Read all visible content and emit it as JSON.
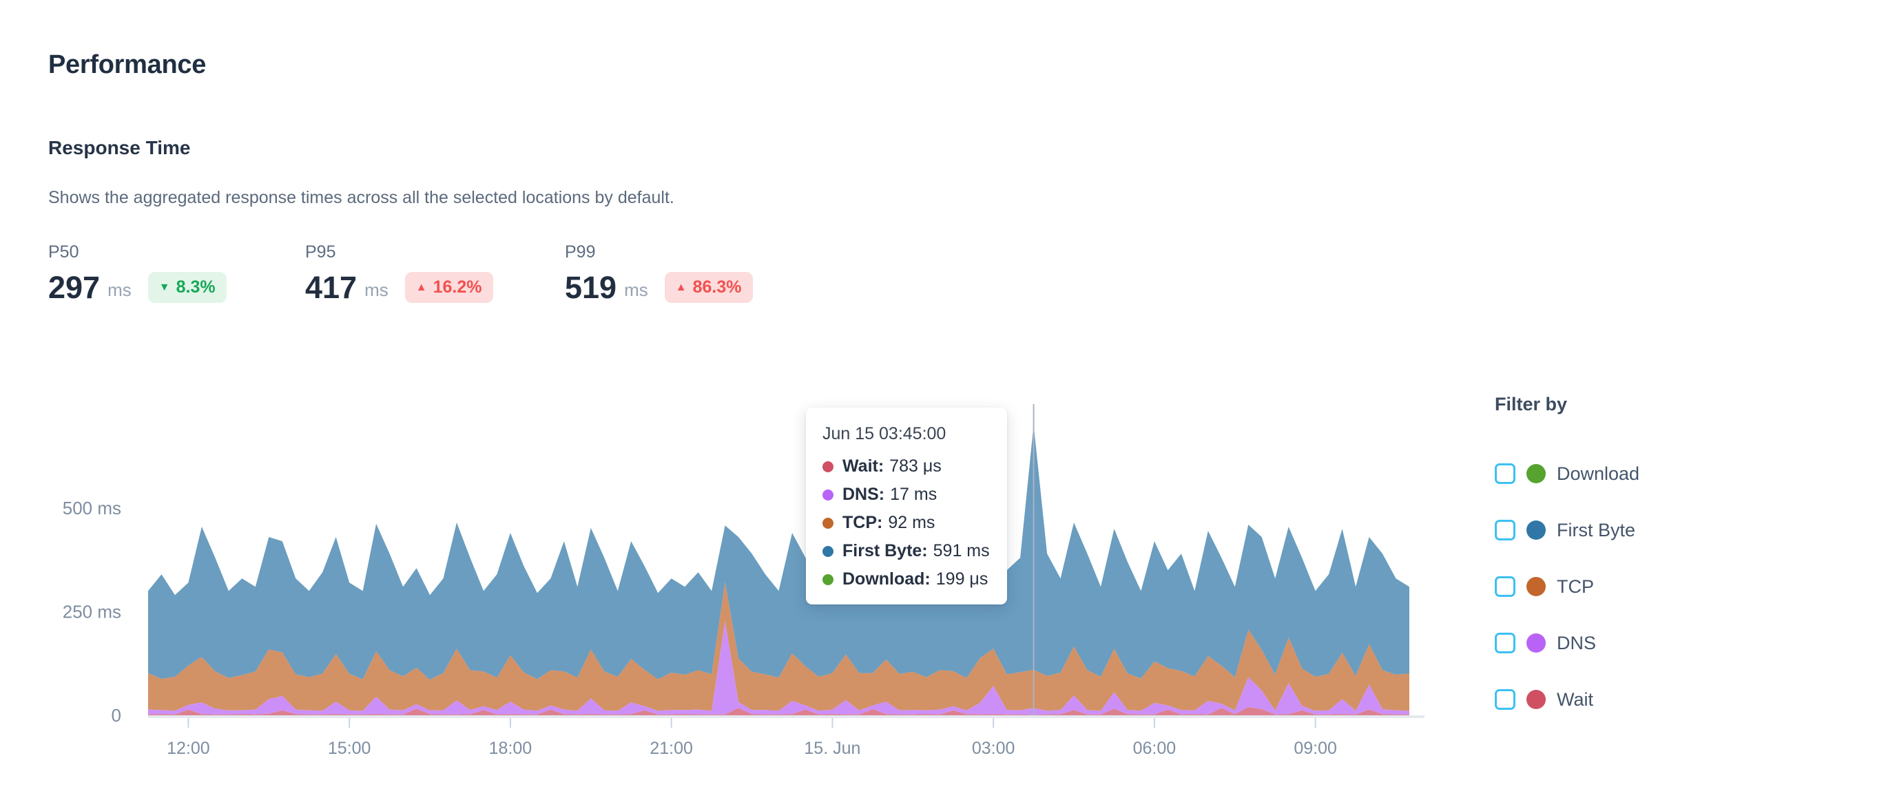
{
  "page": {
    "title": "Performance"
  },
  "section": {
    "title": "Response Time",
    "description": "Shows the aggregated response times across all the selected locations by default."
  },
  "metrics": [
    {
      "label": "P50",
      "value": "297",
      "unit": "ms",
      "delta": "8.3%",
      "direction": "down",
      "arrow": "▼",
      "badge_bg": "#e3f5e9",
      "badge_color": "#17a857"
    },
    {
      "label": "P95",
      "value": "417",
      "unit": "ms",
      "delta": "16.2%",
      "direction": "up",
      "arrow": "▲",
      "badge_bg": "#fcdcdc",
      "badge_color": "#f25050"
    },
    {
      "label": "P99",
      "value": "519",
      "unit": "ms",
      "delta": "86.3%",
      "direction": "up",
      "arrow": "▲",
      "badge_bg": "#fcdcdc",
      "badge_color": "#f25050"
    }
  ],
  "tooltip": {
    "title": "Jun 15 03:45:00",
    "rows": [
      {
        "label": "Wait:",
        "value": "783 μs",
        "color": "#cf4f63"
      },
      {
        "label": "DNS:",
        "value": "17 ms",
        "color": "#b863f5"
      },
      {
        "label": "TCP:",
        "value": "92 ms",
        "color": "#c2662b"
      },
      {
        "label": "First Byte:",
        "value": "591 ms",
        "color": "#3077a8"
      },
      {
        "label": "Download:",
        "value": "199 μs",
        "color": "#56a330"
      }
    ]
  },
  "filter": {
    "title": "Filter by",
    "checkbox_border_color": "#3cc1f2",
    "items": [
      {
        "label": "Download",
        "color": "#56a330",
        "checked": false
      },
      {
        "label": "First Byte",
        "color": "#3077a8",
        "checked": false
      },
      {
        "label": "TCP",
        "color": "#c2662b",
        "checked": false
      },
      {
        "label": "DNS",
        "color": "#b863f5",
        "checked": false
      },
      {
        "label": "Wait",
        "color": "#cf4f63",
        "checked": false
      }
    ]
  },
  "chart_data": {
    "type": "area",
    "stacked": true,
    "title": "Response Time",
    "y_unit": "ms",
    "ylim": [
      0,
      800
    ],
    "grid": false,
    "legend_position": "right",
    "x_start": "Jun 14 11:15",
    "x_interval_minutes": 15,
    "x_ticks": [
      {
        "i": 3,
        "label": "12:00"
      },
      {
        "i": 15,
        "label": "15:00"
      },
      {
        "i": 27,
        "label": "18:00"
      },
      {
        "i": 39,
        "label": "21:00"
      },
      {
        "i": 51,
        "label": "15. Jun"
      },
      {
        "i": 63,
        "label": "03:00"
      },
      {
        "i": 75,
        "label": "06:00"
      },
      {
        "i": 87,
        "label": "09:00"
      }
    ],
    "y_ticks": [
      {
        "v": 0,
        "label": "0"
      },
      {
        "v": 250,
        "label": "250 ms"
      },
      {
        "v": 500,
        "label": "500 ms"
      }
    ],
    "hover_index": 66,
    "hover_time": "Jun 15 03:45:00",
    "series": [
      {
        "name": "Wait",
        "color": "#cf4f63",
        "values": [
          2,
          3,
          2,
          14,
          3,
          2,
          2,
          3,
          2,
          4,
          12,
          3,
          2,
          2,
          3,
          2,
          2,
          3,
          2,
          2,
          16,
          3,
          2,
          2,
          3,
          13,
          2,
          3,
          2,
          2,
          14,
          3,
          2,
          3,
          2,
          2,
          3,
          12,
          2,
          2,
          3,
          2,
          2,
          2,
          18,
          3,
          2,
          2,
          3,
          14,
          2,
          3,
          2,
          2,
          15,
          3,
          2,
          2,
          3,
          2,
          12,
          3,
          2,
          3,
          2,
          2,
          1,
          2,
          3,
          13,
          2,
          2,
          16,
          3,
          2,
          2,
          14,
          2,
          3,
          2,
          18,
          3,
          20,
          15,
          2,
          3,
          12,
          2,
          2,
          3,
          2,
          14,
          3,
          2,
          2
        ]
      },
      {
        "name": "DNS",
        "color": "#b863f5",
        "values": [
          12,
          10,
          9,
          11,
          28,
          14,
          10,
          9,
          12,
          35,
          35,
          11,
          10,
          9,
          30,
          10,
          9,
          42,
          12,
          10,
          11,
          9,
          10,
          34,
          10,
          9,
          11,
          30,
          12,
          9,
          10,
          11,
          9,
          38,
          10,
          9,
          28,
          10,
          9,
          11,
          10,
          12,
          9,
          225,
          14,
          10,
          11,
          9,
          32,
          10,
          9,
          11,
          35,
          10,
          9,
          30,
          10,
          11,
          9,
          12,
          10,
          9,
          28,
          68,
          11,
          10,
          17,
          9,
          10,
          35,
          11,
          9,
          40,
          10,
          9,
          28,
          10,
          11,
          9,
          33,
          10,
          9,
          72,
          45,
          10,
          75,
          11,
          9,
          10,
          36,
          9,
          60,
          12,
          10,
          9
        ]
      },
      {
        "name": "TCP",
        "color": "#c2662b",
        "values": [
          88,
          75,
          82,
          95,
          110,
          90,
          78,
          85,
          92,
          120,
          105,
          85,
          80,
          90,
          115,
          88,
          76,
          110,
          95,
          82,
          88,
          74,
          90,
          125,
          96,
          84,
          78,
          112,
          90,
          76,
          85,
          92,
          80,
          118,
          94,
          82,
          105,
          88,
          76,
          90,
          85,
          95,
          88,
          95,
          105,
          92,
          86,
          80,
          115,
          94,
          82,
          88,
          110,
          90,
          78,
          102,
          88,
          92,
          80,
          95,
          85,
          78,
          108,
          90,
          86,
          92,
          92,
          84,
          90,
          118,
          96,
          82,
          105,
          88,
          78,
          100,
          90,
          94,
          82,
          108,
          92,
          80,
          115,
          98,
          86,
          110,
          90,
          82,
          88,
          112,
          84,
          98,
          94,
          86,
          90
        ]
      },
      {
        "name": "First Byte",
        "color": "#3077a8",
        "values": [
          198,
          252,
          197,
          200,
          314,
          274,
          210,
          233,
          204,
          271,
          268,
          231,
          208,
          244,
          282,
          220,
          213,
          307,
          281,
          216,
          240,
          204,
          228,
          304,
          271,
          194,
          249,
          295,
          256,
          208,
          221,
          314,
          219,
          293,
          274,
          207,
          284,
          250,
          208,
          227,
          212,
          236,
          201,
          136,
          293,
          285,
          241,
          209,
          290,
          262,
          217,
          228,
          308,
          268,
          198,
          295,
          240,
          255,
          208,
          281,
          223,
          200,
          282,
          279,
          251,
          276,
          591,
          295,
          227,
          299,
          281,
          217,
          289,
          269,
          211,
          290,
          236,
          283,
          206,
          302,
          260,
          218,
          253,
          272,
          232,
          267,
          267,
          207,
          240,
          299,
          215,
          258,
          281,
          232,
          209
        ]
      },
      {
        "name": "Download",
        "color": "#56a330",
        "values": [
          0.2,
          0.2,
          0.2,
          0.2,
          0.2,
          0.2,
          0.2,
          0.2,
          0.2,
          0.2,
          0.2,
          0.2,
          0.2,
          0.2,
          0.2,
          0.2,
          0.2,
          0.2,
          0.2,
          0.2,
          0.2,
          0.2,
          0.2,
          0.2,
          0.2,
          0.2,
          0.2,
          0.2,
          0.2,
          0.2,
          0.2,
          0.2,
          0.2,
          0.2,
          0.2,
          0.2,
          0.2,
          0.2,
          0.2,
          0.2,
          0.2,
          0.2,
          0.2,
          0.2,
          0.2,
          0.2,
          0.2,
          0.2,
          0.2,
          0.2,
          0.2,
          0.2,
          0.2,
          0.2,
          0.2,
          0.2,
          0.2,
          0.2,
          0.2,
          0.2,
          0.2,
          0.2,
          0.2,
          0.2,
          0.2,
          0.2,
          0.2,
          0.2,
          0.2,
          0.2,
          0.2,
          0.2,
          0.2,
          0.2,
          0.2,
          0.2,
          0.2,
          0.2,
          0.2,
          0.2,
          0.2,
          0.2,
          0.2,
          0.2,
          0.2,
          0.2,
          0.2,
          0.2,
          0.2,
          0.2,
          0.2,
          0.2,
          0.2,
          0.2,
          0.2
        ]
      }
    ],
    "colors": {
      "axis_line": "#e4e9f0",
      "tick_mark": "#c9d4e0",
      "axis_label": "#7e8da0",
      "hover_line": "#aab4c2",
      "area_opacity": 0.72
    }
  }
}
